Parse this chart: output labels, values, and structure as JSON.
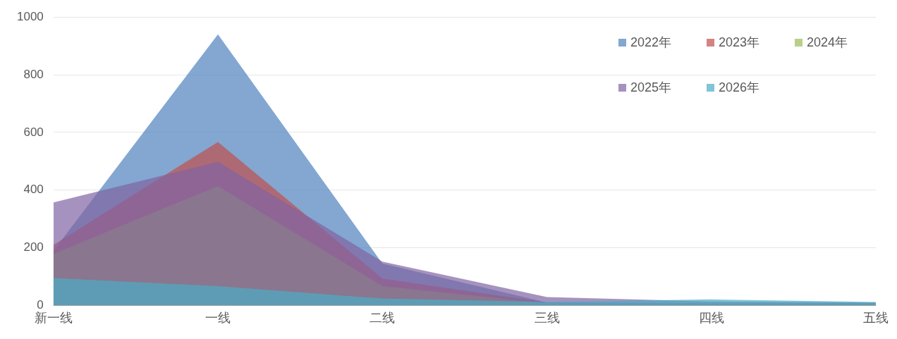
{
  "chart_data": {
    "type": "area",
    "categories": [
      "新一线",
      "一线",
      "二线",
      "三线",
      "四线",
      "五线"
    ],
    "series": [
      {
        "name": "2022年",
        "color": "#4f81bd",
        "values": [
          190,
          940,
          145,
          10,
          6,
          6
        ]
      },
      {
        "name": "2023年",
        "color": "#c0504d",
        "values": [
          210,
          567,
          93,
          10,
          8,
          8
        ]
      },
      {
        "name": "2024年",
        "color": "#9bbb59",
        "values": [
          179,
          414,
          67,
          8,
          6,
          6
        ]
      },
      {
        "name": "2025年",
        "color": "#8064a2",
        "values": [
          357,
          498,
          152,
          29,
          14,
          10
        ]
      },
      {
        "name": "2026年",
        "color": "#4bacc6",
        "values": [
          95,
          67,
          24,
          12,
          21,
          12
        ]
      }
    ],
    "ylim": [
      0,
      1000
    ],
    "yticks": [
      0,
      200,
      400,
      600,
      800,
      1000
    ],
    "grid": "y",
    "legend": "top right"
  }
}
